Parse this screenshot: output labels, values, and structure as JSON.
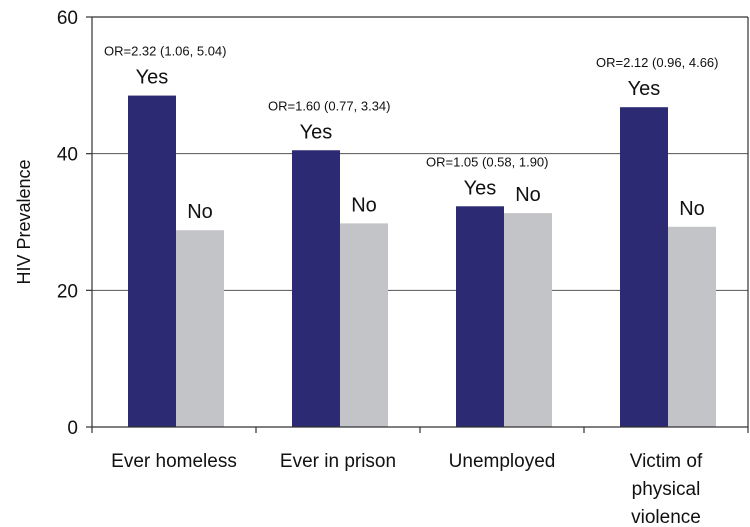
{
  "chart_data": {
    "type": "bar",
    "title": "",
    "xlabel": "",
    "ylabel": "HIV Prevalence",
    "ylim": [
      0,
      60
    ],
    "yticks": [
      0,
      20,
      40,
      60
    ],
    "grid": true,
    "categories": [
      [
        "Ever homeless"
      ],
      [
        "Ever in prison"
      ],
      [
        "Unemployed"
      ],
      [
        "Victim of",
        "physical",
        "violence"
      ]
    ],
    "series": [
      {
        "name": "Yes",
        "color": "#2b2a72",
        "values": [
          48.5,
          40.5,
          32.3,
          46.8
        ]
      },
      {
        "name": "No",
        "color": "#c3c4c8",
        "values": [
          28.8,
          29.8,
          31.3,
          29.3
        ]
      }
    ],
    "annotations": [
      "OR=2.32 (1.06, 5.04)",
      "OR=1.60 (0.77, 3.34)",
      "OR=1.05 (0.58, 1.90)",
      "OR=2.12 (0.96, 4.66)"
    ]
  }
}
